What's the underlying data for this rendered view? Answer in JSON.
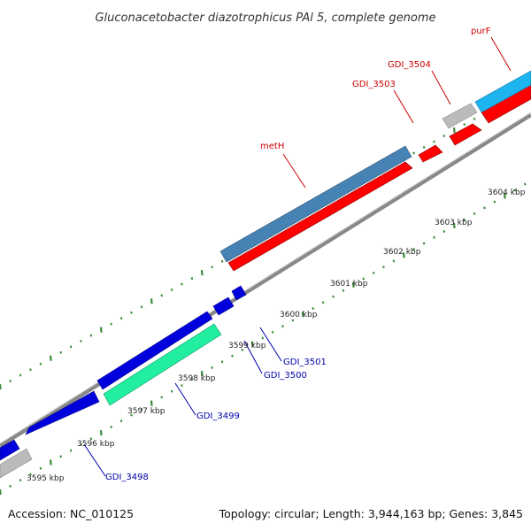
{
  "title": "Gluconacetobacter diazotrophicus PAl 5, complete genome",
  "footer": {
    "accession": "Accession: NC_010125",
    "topology": "Topology: circular; Length: 3,944,163 bp; Genes: 3,845"
  },
  "colors": {
    "backbone": "#888888",
    "tick": "#3a8a3a",
    "label_red": "#cc0000",
    "label_blue": "#0000aa"
  },
  "kbp_labels": [
    "3595 kbp",
    "3596 kbp",
    "3597 kbp",
    "3598 kbp",
    "3599 kbp",
    "3600 kbp",
    "3601 kbp",
    "3602 kbp",
    "3603 kbp",
    "3604 kbp"
  ],
  "genes": [
    {
      "id": "metH",
      "label": "metH",
      "color": "#4682b4"
    },
    {
      "id": "GDI_3503",
      "label": "GDI_3503",
      "color": "#ff0000"
    },
    {
      "id": "GDI_3504",
      "label": "GDI_3504",
      "color": "#bbbbbb"
    },
    {
      "id": "purF",
      "label": "purF",
      "color": "#1eb4f0"
    },
    {
      "id": "GDI_3501",
      "label": "GDI_3501",
      "color": "#0000dd"
    },
    {
      "id": "GDI_3500",
      "label": "GDI_3500",
      "color": "#0000dd"
    },
    {
      "id": "GDI_3499",
      "label": "GDI_3499",
      "color": "#22eea0"
    },
    {
      "id": "GDI_3498",
      "label": "GDI_3498",
      "color": "#bbbbbb"
    }
  ]
}
